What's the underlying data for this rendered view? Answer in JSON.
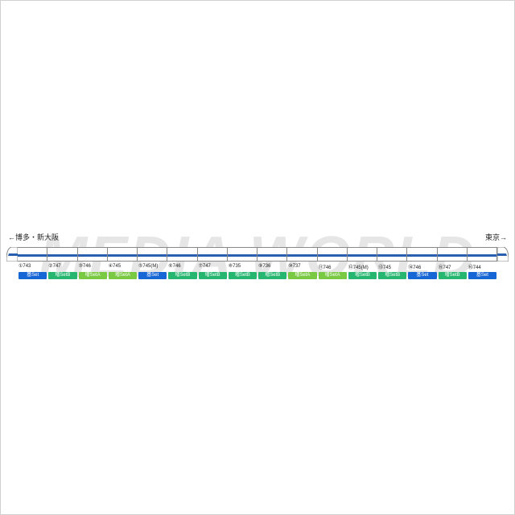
{
  "watermark": "MEDIA WORLD",
  "directions": {
    "left": "←博多・新大阪",
    "right": "東京→"
  },
  "stripe_color": "#2a5fb0",
  "car_body_color": "#fdfdfd",
  "car_border_color": "#888888",
  "set_colors": {
    "base": "#1766d6",
    "addA": "#7ac943",
    "addB": "#26b66f"
  },
  "set_labels": {
    "base": "基Set",
    "addA": "増SetA",
    "addB": "増SetB"
  },
  "cars": [
    {
      "num": "①743",
      "set": "base"
    },
    {
      "num": "②747",
      "set": "addB"
    },
    {
      "num": "③746",
      "set": "addA"
    },
    {
      "num": "④745",
      "set": "addA"
    },
    {
      "num": "⑤745(M)",
      "set": "base"
    },
    {
      "num": "⑥746",
      "set": "addB"
    },
    {
      "num": "⑦747",
      "set": "addB"
    },
    {
      "num": "⑧735",
      "set": "addB"
    },
    {
      "num": "⑨736",
      "set": "addB"
    },
    {
      "num": "⑩737",
      "set": "addA"
    },
    {
      "num": "⑪746",
      "set": "addA"
    },
    {
      "num": "⑫745(M)",
      "set": "addB"
    },
    {
      "num": "⑬745",
      "set": "addB"
    },
    {
      "num": "⑭746",
      "set": "base"
    },
    {
      "num": "⑮747",
      "set": "addB"
    },
    {
      "num": "⑯744",
      "set": "base"
    }
  ]
}
